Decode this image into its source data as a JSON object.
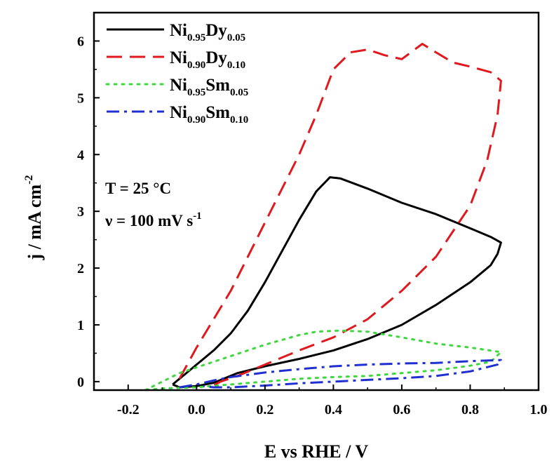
{
  "chart_data": {
    "type": "line",
    "xlabel": "E vs RHE / V",
    "ylabel": "j / mA cm",
    "ylabel_sup": "-2",
    "xlim": [
      -0.3,
      1.0
    ],
    "ylim": [
      -0.15,
      6.5
    ],
    "x_ticks": [
      -0.2,
      0.0,
      0.2,
      0.4,
      0.6,
      0.8,
      1.0
    ],
    "x_tick_labels": [
      "-0.2",
      "0.0",
      "0.2",
      "0.4",
      "0.6",
      "0.8",
      "1.0"
    ],
    "y_ticks": [
      0,
      1,
      2,
      3,
      4,
      5,
      6
    ],
    "y_tick_labels": [
      "0",
      "1",
      "2",
      "3",
      "4",
      "5",
      "6"
    ],
    "legend_position": "top-left",
    "annotations": {
      "temperature": "T = 25 °C",
      "scan_rate": "ν = 100 mV s",
      "scan_rate_sup": "-1"
    },
    "series": [
      {
        "name": "Ni0.95Dy0.05",
        "name_parts": [
          "Ni",
          "0.95",
          "Dy",
          "0.05"
        ],
        "color": "#000000",
        "style": "solid",
        "x": [
          -0.07,
          0.0,
          0.05,
          0.1,
          0.15,
          0.2,
          0.25,
          0.3,
          0.35,
          0.39,
          0.42,
          0.5,
          0.6,
          0.7,
          0.8,
          0.86,
          0.89,
          0.88,
          0.86,
          0.8,
          0.7,
          0.6,
          0.5,
          0.4,
          0.3,
          0.2,
          0.12,
          0.05,
          0.0,
          -0.05,
          -0.07
        ],
        "y": [
          -0.05,
          0.3,
          0.55,
          0.85,
          1.25,
          1.75,
          2.3,
          2.85,
          3.35,
          3.6,
          3.58,
          3.4,
          3.15,
          2.95,
          2.7,
          2.55,
          2.45,
          2.25,
          2.05,
          1.75,
          1.35,
          1.0,
          0.75,
          0.55,
          0.4,
          0.27,
          0.15,
          -0.02,
          -0.08,
          -0.1,
          -0.05
        ]
      },
      {
        "name": "Ni0.90Dy0.10",
        "name_parts": [
          "Ni",
          "0.90",
          "Dy",
          "0.10"
        ],
        "color": "#e0191e",
        "style": "dash",
        "x": [
          -0.05,
          0.0,
          0.1,
          0.2,
          0.3,
          0.35,
          0.4,
          0.45,
          0.5,
          0.55,
          0.6,
          0.66,
          0.7,
          0.75,
          0.8,
          0.86,
          0.89,
          0.88,
          0.85,
          0.8,
          0.7,
          0.6,
          0.5,
          0.4,
          0.3,
          0.2,
          0.12,
          0.07,
          0.04
        ],
        "y": [
          0.05,
          0.6,
          1.6,
          2.8,
          4.0,
          4.7,
          5.5,
          5.8,
          5.85,
          5.75,
          5.68,
          5.95,
          5.8,
          5.62,
          5.55,
          5.45,
          5.3,
          4.7,
          3.9,
          3.1,
          2.2,
          1.6,
          1.1,
          0.78,
          0.55,
          0.3,
          0.1,
          0.0,
          -0.1
        ]
      },
      {
        "name": "Ni0.95Sm0.05",
        "name_parts": [
          "Ni",
          "0.95",
          "Sm",
          "0.05"
        ],
        "color": "#3ed83e",
        "style": "dot",
        "x": [
          -0.15,
          -0.1,
          -0.05,
          0.0,
          0.1,
          0.2,
          0.3,
          0.35,
          0.42,
          0.5,
          0.6,
          0.7,
          0.8,
          0.89,
          0.86,
          0.8,
          0.7,
          0.6,
          0.5,
          0.4,
          0.3,
          0.2,
          0.1,
          0.0,
          -0.1,
          -0.15
        ],
        "y": [
          -0.15,
          0.0,
          0.15,
          0.25,
          0.45,
          0.65,
          0.82,
          0.88,
          0.9,
          0.88,
          0.78,
          0.67,
          0.6,
          0.52,
          0.35,
          0.28,
          0.2,
          0.15,
          0.1,
          0.08,
          0.05,
          0.0,
          -0.05,
          -0.1,
          -0.12,
          -0.15
        ]
      },
      {
        "name": "Ni0.90Sm0.10",
        "name_parts": [
          "Ni",
          "0.90",
          "Sm",
          "0.10"
        ],
        "color": "#1f2fd0",
        "style": "dashdot",
        "x": [
          -0.05,
          0.0,
          0.05,
          0.1,
          0.15,
          0.2,
          0.3,
          0.4,
          0.5,
          0.6,
          0.7,
          0.8,
          0.89,
          0.88,
          0.8,
          0.7,
          0.6,
          0.5,
          0.4,
          0.3,
          0.2,
          0.1,
          0.05,
          0.02
        ],
        "y": [
          -0.1,
          -0.05,
          0.02,
          0.08,
          0.12,
          0.16,
          0.22,
          0.27,
          0.3,
          0.32,
          0.33,
          0.36,
          0.38,
          0.3,
          0.18,
          0.1,
          0.06,
          0.03,
          0.0,
          -0.03,
          -0.07,
          -0.1,
          -0.1,
          -0.08
        ]
      }
    ]
  }
}
